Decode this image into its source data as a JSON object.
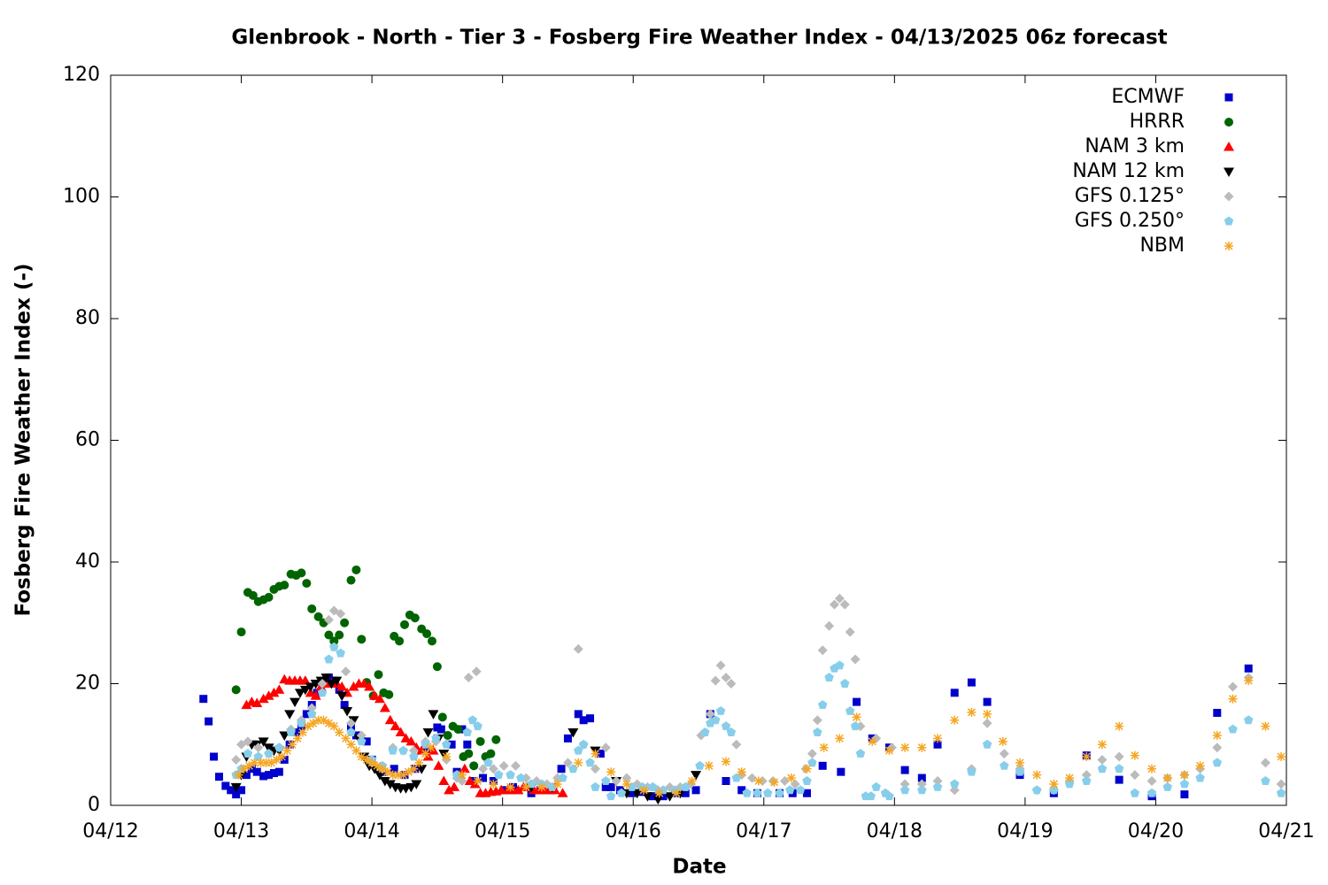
{
  "chart_data": {
    "type": "scatter",
    "title": "Glenbrook - North - Tier 3 - Fosberg Fire Weather Index - 04/13/2025 06z forecast",
    "x_label": "Date",
    "y_label": "Fosberg Fire Weather Index (-)",
    "xlim": [
      0,
      9
    ],
    "xticks": [
      {
        "value": 0,
        "label": "04/12"
      },
      {
        "value": 1,
        "label": "04/13"
      },
      {
        "value": 2,
        "label": "04/14"
      },
      {
        "value": 3,
        "label": "04/15"
      },
      {
        "value": 4,
        "label": "04/16"
      },
      {
        "value": 5,
        "label": "04/17"
      },
      {
        "value": 6,
        "label": "04/18"
      },
      {
        "value": 7,
        "label": "04/19"
      },
      {
        "value": 8,
        "label": "04/20"
      },
      {
        "value": 9,
        "label": "04/21"
      }
    ],
    "ylim": [
      0,
      120
    ],
    "yticks": [
      0,
      20,
      40,
      60,
      80,
      100,
      120
    ],
    "legend": "top-right",
    "series": [
      {
        "name": "ECMWF",
        "color": "#0000cc",
        "marker": "square",
        "x": [
          0.71,
          0.75,
          0.79,
          0.83,
          0.88,
          0.92,
          0.96,
          1.0,
          1.04,
          1.08,
          1.12,
          1.17,
          1.21,
          1.25,
          1.29,
          1.33,
          1.37,
          1.42,
          1.46,
          1.5,
          1.54,
          1.58,
          1.62,
          1.67,
          1.71,
          1.75,
          1.79,
          1.84,
          1.88,
          1.96,
          2.0,
          2.08,
          2.17,
          2.25,
          2.33,
          2.42,
          2.5,
          2.53,
          2.61,
          2.65,
          2.69,
          2.73,
          2.77,
          2.85,
          2.93,
          3.01,
          3.08,
          3.22,
          3.29,
          3.37,
          3.45,
          3.5,
          3.58,
          3.62,
          3.67,
          3.75,
          3.79,
          3.83,
          3.9,
          3.99,
          4.07,
          4.15,
          4.23,
          4.32,
          4.4,
          4.48,
          4.59,
          4.71,
          4.83,
          4.95,
          5.12,
          5.22,
          5.33,
          5.45,
          5.59,
          5.71,
          5.83,
          5.96,
          6.08,
          6.21,
          6.33,
          6.46,
          6.59,
          6.71,
          6.96,
          7.22,
          7.47,
          7.72,
          7.97,
          8.22,
          8.47,
          8.71
        ],
        "values": [
          17.5,
          13.8,
          8,
          4.7,
          3.2,
          2.5,
          1.8,
          2.5,
          5,
          6,
          5.5,
          4.8,
          5,
          5.3,
          5.5,
          7.5,
          10,
          12,
          13,
          15,
          16.5,
          18.5,
          20,
          21,
          20.5,
          19,
          16.5,
          13,
          11.5,
          10.5,
          7.5,
          5.5,
          6,
          5,
          6,
          9,
          12.8,
          12.5,
          10,
          5.5,
          12.5,
          10,
          4,
          4.5,
          4,
          2.5,
          3,
          2,
          2.5,
          2.5,
          6,
          11,
          15,
          14,
          14.3,
          8.5,
          3,
          3,
          2.5,
          2,
          2.2,
          1.5,
          1.5,
          2,
          2,
          2.5,
          15,
          4,
          2.5,
          2,
          2,
          2,
          2,
          6.5,
          5.5,
          17,
          11,
          9.5,
          5.8,
          4.5,
          10,
          18.5,
          20.2,
          17,
          5,
          2,
          8.2,
          4.2,
          1.5,
          1.8,
          15.2,
          22.5
        ]
      },
      {
        "name": "HRRR",
        "color": "#006400",
        "marker": "circle",
        "x": [
          0.96,
          1.0,
          1.05,
          1.09,
          1.13,
          1.17,
          1.21,
          1.25,
          1.29,
          1.33,
          1.38,
          1.42,
          1.46,
          1.5,
          1.54,
          1.59,
          1.63,
          1.67,
          1.71,
          1.75,
          1.79,
          1.84,
          1.88,
          1.92,
          1.96,
          2.01,
          2.05,
          2.09,
          2.13,
          2.17,
          2.21,
          2.25,
          2.29,
          2.33,
          2.38,
          2.42,
          2.46,
          2.5,
          2.54,
          2.58,
          2.62,
          2.66,
          2.7,
          2.74,
          2.78,
          2.83,
          2.87,
          2.91,
          2.95
        ],
        "values": [
          19,
          28.5,
          35,
          34.5,
          33.5,
          33.8,
          34.2,
          35.5,
          36,
          36.2,
          38,
          37.8,
          38.2,
          36.5,
          32.3,
          31,
          30,
          28,
          27,
          28,
          30,
          37,
          38.7,
          27.3,
          20.2,
          18,
          21.5,
          18.5,
          18.2,
          27.8,
          27,
          29.7,
          31.3,
          30.8,
          29,
          28.2,
          27,
          22.8,
          14.5,
          11.5,
          13,
          12.5,
          8,
          8.5,
          6.5,
          10.5,
          8,
          8.5,
          10.8
        ]
      },
      {
        "name": "NAM 3 km",
        "color": "#ff0000",
        "marker": "triangle-up",
        "x": [
          1.04,
          1.08,
          1.12,
          1.17,
          1.21,
          1.25,
          1.29,
          1.33,
          1.37,
          1.41,
          1.45,
          1.49,
          1.53,
          1.57,
          1.61,
          1.65,
          1.69,
          1.73,
          1.77,
          1.81,
          1.86,
          1.9,
          1.94,
          1.98,
          2.02,
          2.06,
          2.1,
          2.14,
          2.18,
          2.22,
          2.26,
          2.3,
          2.34,
          2.38,
          2.43,
          2.47,
          2.51,
          2.55,
          2.59,
          2.63,
          2.67,
          2.71,
          2.75,
          2.79,
          2.83,
          2.87,
          2.91,
          2.95,
          2.99,
          3.04,
          3.08,
          3.12,
          3.16,
          3.2,
          3.24,
          3.28,
          3.32,
          3.36,
          3.4,
          3.46
        ],
        "values": [
          16.5,
          17,
          16.8,
          17.5,
          18,
          18.5,
          19,
          20.7,
          20.5,
          20.5,
          20.5,
          20.5,
          18.5,
          18,
          19.5,
          20,
          20,
          20,
          19.5,
          18.5,
          19.5,
          20,
          20,
          19.5,
          18,
          17.5,
          16,
          14,
          13,
          12,
          11,
          10.5,
          9.5,
          9,
          8,
          9,
          6.5,
          4,
          2.5,
          3,
          5,
          6,
          4,
          3.5,
          2,
          2,
          2.2,
          2.3,
          2.5,
          2.5,
          2.5,
          2.5,
          3,
          3,
          2.5,
          2.5,
          2.5,
          2.5,
          2.5,
          2
        ]
      },
      {
        "name": "NAM 12 km",
        "color": "#000000",
        "marker": "triangle-down",
        "x": [
          0.96,
          1.0,
          1.04,
          1.08,
          1.12,
          1.17,
          1.21,
          1.25,
          1.29,
          1.33,
          1.37,
          1.41,
          1.45,
          1.49,
          1.53,
          1.57,
          1.61,
          1.65,
          1.69,
          1.73,
          1.77,
          1.81,
          1.86,
          1.9,
          1.94,
          1.98,
          2.02,
          2.06,
          2.1,
          2.14,
          2.18,
          2.22,
          2.26,
          2.3,
          2.34,
          2.38,
          2.43,
          2.47,
          2.51,
          2.55,
          3.22,
          3.38,
          3.54,
          3.71,
          3.87,
          3.95,
          4.03,
          4.11,
          4.19,
          4.28,
          4.36,
          4.48
        ],
        "values": [
          3,
          5,
          8,
          10,
          10,
          10.5,
          9.5,
          9,
          9,
          11.5,
          15,
          17,
          18.5,
          19,
          19.5,
          20,
          20.5,
          21,
          20,
          20.5,
          18,
          15.5,
          14,
          11,
          8,
          6.5,
          6,
          5,
          4,
          3.5,
          3,
          2.8,
          2.8,
          3,
          3.5,
          6,
          12,
          15,
          11,
          8.5,
          3,
          3,
          12,
          9,
          4,
          2,
          2,
          1.5,
          1,
          1.5,
          2,
          5
        ]
      },
      {
        "name": "GFS 0.125°",
        "color": "#bbbbbb",
        "marker": "diamond",
        "x": [
          0.96,
          1.0,
          1.05,
          1.13,
          1.21,
          1.29,
          1.38,
          1.46,
          1.54,
          1.62,
          1.67,
          1.71,
          1.76,
          1.8,
          1.84,
          1.92,
          2.0,
          2.08,
          2.16,
          2.24,
          2.32,
          2.41,
          2.49,
          2.57,
          2.65,
          2.69,
          2.74,
          2.8,
          2.85,
          2.93,
          3.01,
          3.1,
          3.18,
          3.26,
          3.34,
          3.42,
          3.5,
          3.58,
          3.62,
          3.71,
          3.79,
          3.87,
          3.95,
          4.03,
          4.11,
          4.19,
          4.28,
          4.36,
          4.44,
          4.52,
          4.59,
          4.63,
          4.67,
          4.71,
          4.75,
          4.79,
          4.83,
          4.91,
          4.99,
          5.07,
          5.16,
          5.24,
          5.32,
          5.37,
          5.41,
          5.45,
          5.5,
          5.54,
          5.58,
          5.62,
          5.66,
          5.7,
          5.74,
          5.86,
          5.98,
          6.08,
          6.21,
          6.33,
          6.46,
          6.59,
          6.71,
          6.84,
          6.96,
          7.09,
          7.22,
          7.34,
          7.47,
          7.59,
          7.72,
          7.84,
          7.97,
          8.09,
          8.22,
          8.34,
          8.47,
          8.59,
          8.71,
          8.84,
          8.96
        ],
        "values": [
          7.5,
          10,
          10.5,
          9.5,
          8.5,
          9.5,
          12.5,
          14,
          16,
          20,
          30.5,
          32,
          31.5,
          22,
          13.5,
          11.5,
          7,
          6,
          9.5,
          9,
          9,
          10.5,
          10.5,
          7.5,
          4.5,
          4,
          21,
          22,
          6,
          6,
          6.5,
          6.5,
          4.5,
          4,
          3.5,
          4.5,
          7,
          25.7,
          10,
          6,
          9.5,
          4,
          4.5,
          3.5,
          3,
          2.5,
          3,
          3,
          3.5,
          11.5,
          15,
          20.5,
          23,
          21,
          20,
          10,
          5,
          4.5,
          4,
          4,
          4,
          3.5,
          6,
          8.5,
          14,
          25.5,
          29.5,
          33,
          34,
          33,
          28.5,
          24,
          13,
          11,
          9.5,
          3.5,
          3.5,
          4,
          2.5,
          6,
          13.5,
          8.5,
          6,
          2.5,
          2.5,
          4,
          5,
          7.5,
          8,
          5,
          4,
          4.5,
          5,
          6,
          9.5,
          19.5,
          21,
          7,
          3.5
        ]
      },
      {
        "name": "GFS 0.250°",
        "color": "#87ceeb",
        "marker": "pentagon",
        "x": [
          0.96,
          1.0,
          1.05,
          1.13,
          1.21,
          1.29,
          1.38,
          1.46,
          1.54,
          1.62,
          1.67,
          1.71,
          1.76,
          1.84,
          1.92,
          2.0,
          2.08,
          2.16,
          2.24,
          2.32,
          2.41,
          2.49,
          2.57,
          2.65,
          2.73,
          2.77,
          2.81,
          2.89,
          2.97,
          3.06,
          3.14,
          3.22,
          3.3,
          3.38,
          3.46,
          3.54,
          3.58,
          3.62,
          3.67,
          3.71,
          3.79,
          3.83,
          3.91,
          3.99,
          4.07,
          4.15,
          4.23,
          4.32,
          4.4,
          4.51,
          4.55,
          4.59,
          4.63,
          4.67,
          4.71,
          4.75,
          4.79,
          4.87,
          4.95,
          5.03,
          5.12,
          5.2,
          5.28,
          5.33,
          5.37,
          5.41,
          5.45,
          5.5,
          5.54,
          5.58,
          5.62,
          5.66,
          5.7,
          5.74,
          5.78,
          5.82,
          5.86,
          5.93,
          5.96,
          6.08,
          6.21,
          6.33,
          6.46,
          6.59,
          6.71,
          6.84,
          6.96,
          7.09,
          7.22,
          7.34,
          7.47,
          7.59,
          7.72,
          7.84,
          7.97,
          8.09,
          8.22,
          8.34,
          8.47,
          8.59,
          8.71,
          8.84,
          8.96
        ],
        "values": [
          5,
          6,
          8.5,
          8,
          8.5,
          9.5,
          12,
          13.5,
          15,
          18.5,
          24,
          26,
          25,
          12,
          10.5,
          7.5,
          6.5,
          9,
          9,
          8,
          10,
          11,
          10,
          5,
          12,
          14,
          13,
          7,
          5,
          5,
          4.5,
          3.5,
          3.5,
          3,
          4.5,
          6,
          9,
          10,
          7,
          3,
          4,
          1.5,
          2,
          3,
          3,
          3,
          2.5,
          2.5,
          3,
          6.5,
          12,
          13.5,
          14,
          15.5,
          13,
          12,
          4.5,
          2,
          2,
          2,
          2,
          2.5,
          2.5,
          4,
          7,
          12,
          16.5,
          21,
          22.5,
          23,
          20,
          15.5,
          13,
          8.5,
          1.5,
          1.5,
          3,
          2,
          1.5,
          2.5,
          2.5,
          3,
          3.5,
          5.5,
          10,
          6.5,
          5.5,
          2.5,
          2.5,
          3.5,
          4,
          6,
          6,
          2,
          2,
          3,
          3.5,
          4.5,
          7,
          12.5,
          14,
          4,
          2
        ]
      },
      {
        "name": "NBM",
        "color": "#f5a623",
        "marker": "asterisk",
        "x": [
          0.98,
          1.02,
          1.06,
          1.1,
          1.15,
          1.19,
          1.23,
          1.27,
          1.31,
          1.35,
          1.39,
          1.43,
          1.47,
          1.51,
          1.55,
          1.59,
          1.63,
          1.67,
          1.71,
          1.75,
          1.8,
          1.84,
          1.88,
          1.92,
          1.96,
          2.0,
          2.04,
          2.08,
          2.12,
          2.16,
          2.2,
          2.24,
          2.28,
          2.32,
          2.36,
          2.41,
          2.45,
          2.57,
          2.69,
          2.81,
          2.93,
          3.06,
          3.18,
          3.3,
          3.42,
          3.58,
          3.71,
          3.83,
          3.95,
          4.08,
          4.2,
          4.33,
          4.45,
          4.58,
          4.71,
          4.83,
          4.96,
          5.08,
          5.21,
          5.33,
          5.46,
          5.58,
          5.71,
          5.83,
          5.96,
          6.08,
          6.21,
          6.33,
          6.46,
          6.59,
          6.71,
          6.83,
          6.96,
          7.09,
          7.22,
          7.34,
          7.47,
          7.59,
          7.72,
          7.84,
          7.97,
          8.09,
          8.22,
          8.34,
          8.47,
          8.59,
          8.71,
          8.84,
          8.96
        ],
        "values": [
          5,
          6,
          6.5,
          7,
          7,
          7,
          7,
          7.5,
          8,
          9,
          10,
          11,
          12,
          13,
          13.5,
          14,
          14,
          13.5,
          13,
          12,
          11,
          10,
          9,
          8,
          7.5,
          7,
          6.5,
          6,
          5.5,
          5,
          5,
          5,
          5.5,
          6,
          7,
          8.5,
          9.5,
          8,
          5,
          4,
          3.5,
          3,
          3,
          3,
          3.5,
          7,
          8.5,
          5.5,
          3.5,
          2.5,
          2,
          2,
          4,
          6.5,
          7.2,
          5.5,
          4,
          3.8,
          4.5,
          6,
          9.5,
          11,
          14.5,
          10.5,
          9,
          9.5,
          9.5,
          11,
          14,
          15.3,
          15,
          10.5,
          7,
          5,
          3.5,
          4.5,
          8,
          10,
          13,
          8.2,
          6,
          4.5,
          5,
          6.5,
          11.5,
          17.5,
          20.5,
          13,
          8
        ]
      }
    ]
  }
}
